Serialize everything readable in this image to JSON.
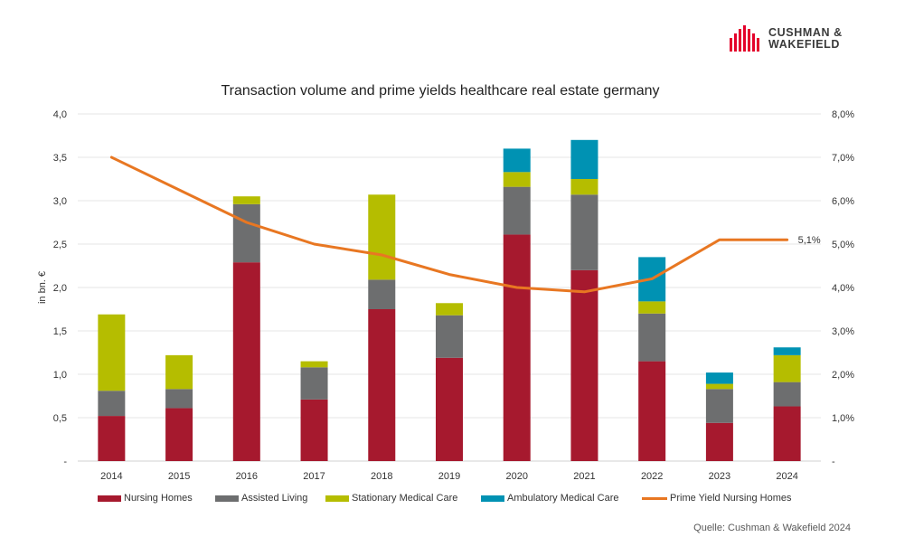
{
  "brand": {
    "line1": "CUSHMAN &",
    "line2": "WAKEFIELD",
    "icon": "cushman-wakefield-logo-icon",
    "color": "#e4002b"
  },
  "source": "Quelle: Cushman & Wakefield 2024",
  "chart_data": {
    "type": "bar",
    "stacked": true,
    "title": "Transaction volume and prime yields healthcare real estate germany",
    "ylabel": "in bn. €",
    "y2label": "",
    "categories": [
      "2014",
      "2015",
      "2016",
      "2017",
      "2018",
      "2019",
      "2020",
      "2021",
      "2022",
      "2023",
      "2024"
    ],
    "ylim": [
      0,
      4
    ],
    "y_ticks": [
      "-",
      "0,5",
      "1,0",
      "1,5",
      "2,0",
      "2,5",
      "3,0",
      "3,5",
      "4,0"
    ],
    "y_tick_values": [
      0,
      0.5,
      1.0,
      1.5,
      2.0,
      2.5,
      3.0,
      3.5,
      4.0
    ],
    "y2lim": [
      0,
      8
    ],
    "y2_ticks": [
      "-",
      "1,0%",
      "2,0%",
      "3,0%",
      "4,0%",
      "5,0%",
      "6,0%",
      "7,0%",
      "8,0%"
    ],
    "y2_tick_values": [
      0,
      1,
      2,
      3,
      4,
      5,
      6,
      7,
      8
    ],
    "series": [
      {
        "name": "Nursing Homes",
        "color": "#a6192e",
        "values": [
          0.52,
          0.61,
          2.29,
          0.71,
          1.75,
          1.19,
          2.61,
          2.2,
          1.15,
          0.44,
          0.63
        ]
      },
      {
        "name": "Assisted Living",
        "color": "#6d6e6f",
        "values": [
          0.29,
          0.22,
          0.67,
          0.37,
          0.34,
          0.49,
          0.55,
          0.87,
          0.55,
          0.39,
          0.28
        ]
      },
      {
        "name": "Stationary Medical Care",
        "color": "#b5bd00",
        "values": [
          0.88,
          0.39,
          0.09,
          0.07,
          0.98,
          0.14,
          0.17,
          0.18,
          0.14,
          0.06,
          0.31
        ]
      },
      {
        "name": "Ambulatory Medical Care",
        "color": "#0092b3",
        "values": [
          0.0,
          0.0,
          0.0,
          0.0,
          0.0,
          0.0,
          0.27,
          0.45,
          0.51,
          0.13,
          0.09
        ]
      }
    ],
    "line_series": {
      "name": "Prime Yield Nursing Homes",
      "color": "#e87722",
      "axis": "right",
      "values": [
        7.0,
        6.25,
        5.5,
        5.0,
        4.75,
        4.3,
        4.0,
        3.9,
        4.2,
        5.1,
        5.1
      ]
    },
    "annotations": [
      {
        "category": "2024",
        "text": "5,1%"
      }
    ],
    "legend_position": "bottom",
    "grid": true
  }
}
